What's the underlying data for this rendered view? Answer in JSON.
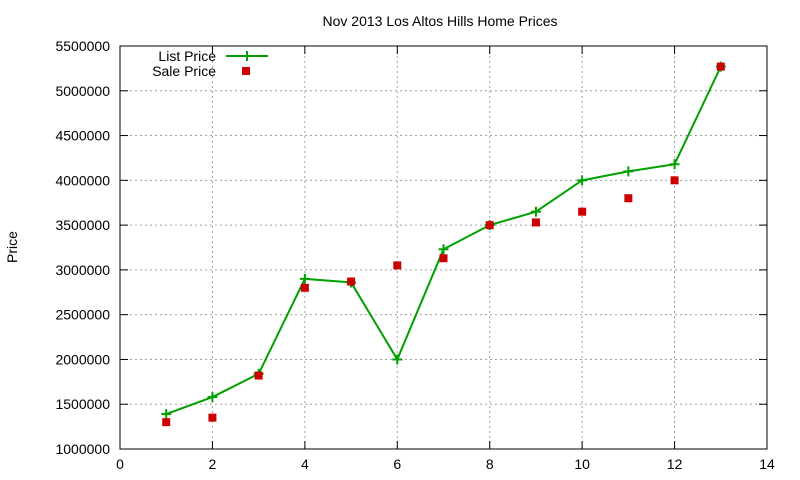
{
  "chart_data": {
    "type": "line",
    "title": "Nov 2013 Los Altos Hills Home Prices",
    "xlabel": "",
    "ylabel": "Price",
    "xlim": [
      0,
      14
    ],
    "ylim": [
      1000000,
      5500000
    ],
    "xticks": [
      0,
      2,
      4,
      6,
      8,
      10,
      12,
      14
    ],
    "yticks": [
      1000000,
      1500000,
      2000000,
      2500000,
      3000000,
      3500000,
      4000000,
      4500000,
      5000000,
      5500000
    ],
    "grid": true,
    "legend": "top-left",
    "series": [
      {
        "name": "List Price",
        "style": "line+points",
        "color": "#00a000",
        "x": [
          1,
          2,
          3,
          4,
          5,
          6,
          7,
          8,
          9,
          10,
          11,
          12,
          13
        ],
        "y": [
          1390000,
          1580000,
          1840000,
          2900000,
          2860000,
          2000000,
          3230000,
          3500000,
          3650000,
          4000000,
          4100000,
          4180000,
          5270000
        ]
      },
      {
        "name": "Sale Price",
        "style": "points",
        "color": "#cc0000",
        "x": [
          1,
          2,
          3,
          4,
          5,
          6,
          7,
          8,
          9,
          10,
          11,
          12,
          13
        ],
        "y": [
          1300000,
          1350000,
          1820000,
          2800000,
          2870000,
          3050000,
          3130000,
          3500000,
          3530000,
          3650000,
          3800000,
          4000000,
          5270000
        ]
      }
    ]
  }
}
